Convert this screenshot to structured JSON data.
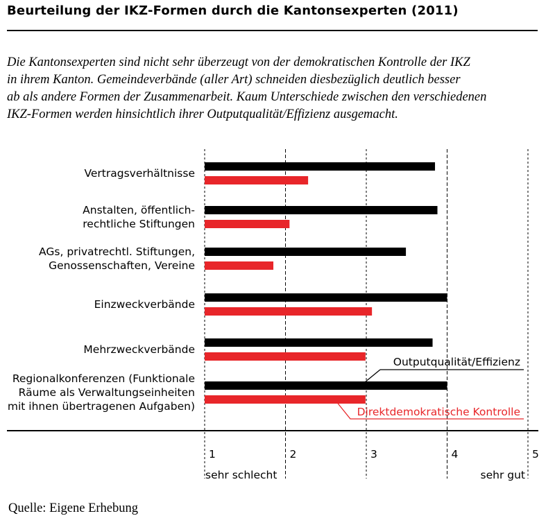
{
  "title": "Beurteilung der IKZ-Formen durch die Kantonsexperten (2011)",
  "subtitle_lines": [
    "Die Kantonsexperten sind nicht sehr überzeugt von der demokratischen Kontrolle der IKZ",
    "in ihrem Kanton. Gemeindeverbände (aller Art) schneiden diesbezüglich deutlich besser",
    "ab als andere Formen der Zusammenarbeit. Kaum Unterschiede zwischen den verschiedenen",
    "IKZ-Formen werden hinsichtlich ihrer Outputqualität/Effizienz ausgemacht."
  ],
  "source": "Quelle: Eigene Erhebung",
  "colors": {
    "output": "#000000",
    "control": "#e8262a"
  },
  "chart_data": {
    "type": "bar",
    "orientation": "horizontal",
    "categories": [
      [
        "Vertragsverhältnisse"
      ],
      [
        "Anstalten, öffentlich-",
        "rechtliche Stiftungen"
      ],
      [
        "AGs, privatrechtl. Stiftungen,",
        "Genossenschaften, Vereine"
      ],
      [
        "Einzweckverbände"
      ],
      [
        "Mehrzweckverbände"
      ],
      [
        "Regionalkonferenzen (Funktionale",
        "Räume als Verwaltungseinheiten",
        "mit ihnen übertragenen Aufgaben)"
      ]
    ],
    "series": [
      {
        "name": "Outputqualität/Effizienz",
        "values": [
          3.85,
          3.88,
          3.49,
          4.0,
          3.82,
          4.0
        ]
      },
      {
        "name": "Direktdemokratische Kontrolle",
        "values": [
          2.28,
          2.05,
          1.85,
          3.07,
          2.99,
          2.99
        ]
      }
    ],
    "xlim": [
      1,
      5
    ],
    "ticks": [
      1,
      2,
      3,
      4,
      5
    ],
    "tick_labels": [
      "1",
      "2",
      "3",
      "4",
      "5"
    ],
    "scale_labels": {
      "low": "sehr schlecht",
      "high": "sehr gut"
    },
    "grid": "dashed vertical"
  }
}
